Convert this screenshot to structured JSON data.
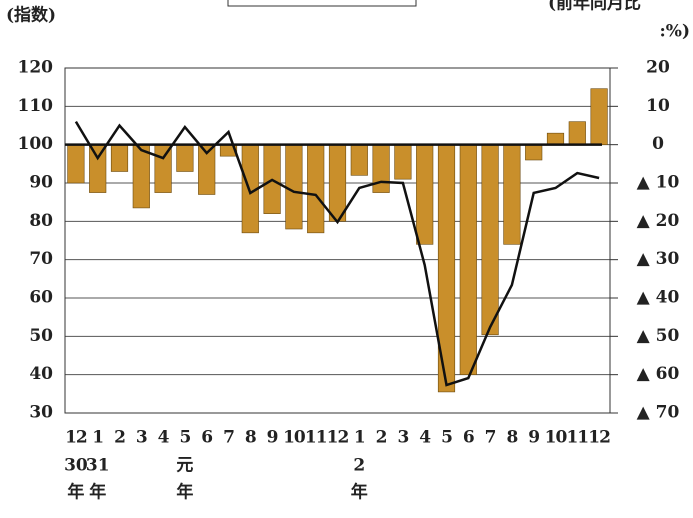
{
  "chart_data": {
    "type": "bar_line",
    "y_label": "(指数)",
    "y2_label": [
      "(前年同月比",
      ":%)"
    ],
    "categories": [
      "12",
      "1",
      "2",
      "3",
      "4",
      "5",
      "6",
      "7",
      "8",
      "9",
      "10",
      "11",
      "12",
      "1",
      "2",
      "3",
      "4",
      "5",
      "6",
      "7",
      "8",
      "9",
      "10",
      "11",
      "12"
    ],
    "year_labels": [
      [
        "30",
        "年"
      ],
      [
        "31",
        "年"
      ],
      null,
      null,
      null,
      [
        "元",
        "年"
      ],
      null,
      null,
      null,
      null,
      null,
      null,
      null,
      [
        "2",
        "年"
      ],
      null,
      null,
      null,
      null,
      null,
      null,
      null,
      null,
      null,
      null,
      null
    ],
    "series": [
      {
        "type": "bar",
        "axis": "y2",
        "color": "#c98f2b",
        "values": [
          -10,
          -12.5,
          -7,
          -16.5,
          -12.5,
          -7,
          -13,
          -3,
          -23,
          -18,
          -22,
          -23,
          -20,
          -8,
          -12.5,
          -9,
          -26,
          -64.5,
          -60,
          -49.6,
          -26,
          -4,
          3,
          6,
          14.6
        ]
      },
      {
        "type": "line",
        "axis": "y",
        "color": "#111111",
        "values": [
          106,
          96.5,
          105,
          98.6,
          96.5,
          104.6,
          97.8,
          103.3,
          87.4,
          90.8,
          87.7,
          86.9,
          79.8,
          88.7,
          90.3,
          90,
          68.6,
          37.3,
          39.1,
          52.4,
          63.4,
          87.4,
          88.7,
          92.6,
          91.3
        ]
      }
    ],
    "ylim": [
      30,
      120
    ],
    "yticks": [
      30,
      40,
      50,
      60,
      70,
      80,
      90,
      100,
      110,
      120
    ],
    "y2lim": [
      -70,
      20
    ],
    "y2ticks": [
      {
        "value": -70,
        "label": "▲ 70"
      },
      {
        "value": -60,
        "label": "▲ 60"
      },
      {
        "value": -50,
        "label": "▲ 50"
      },
      {
        "value": -40,
        "label": "▲ 40"
      },
      {
        "value": -30,
        "label": "▲ 30"
      },
      {
        "value": -20,
        "label": "▲ 20"
      },
      {
        "value": -10,
        "label": "▲ 10"
      },
      0,
      10,
      20
    ],
    "grid": true
  }
}
